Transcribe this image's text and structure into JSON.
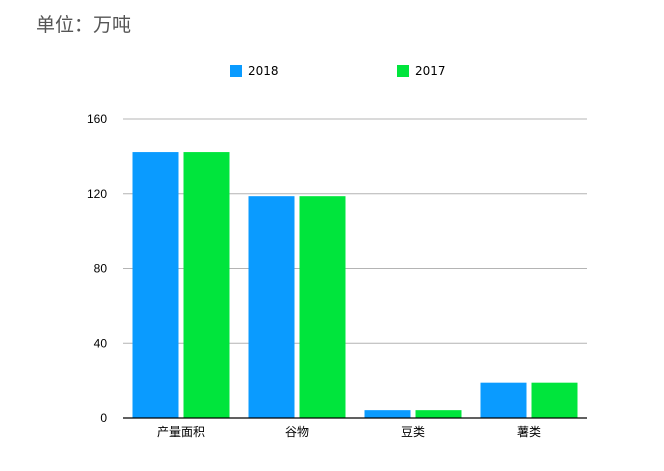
{
  "unit_text": "单位：万吨",
  "legend": [
    {
      "name": "2018",
      "color": "#0a9bff"
    },
    {
      "name": "2017",
      "color": "#00e53c"
    }
  ],
  "chart_data": {
    "type": "bar",
    "categories": [
      "产量面积",
      "谷物",
      "豆类",
      "薯类"
    ],
    "series": [
      {
        "name": "2018",
        "values": [
          142.3,
          118.7,
          4.2,
          18.9
        ],
        "color": "#0a9bff"
      },
      {
        "name": "2017",
        "values": [
          142.3,
          118.7,
          4.2,
          18.9
        ],
        "color": "#00e53c"
      }
    ],
    "yticks": [
      0,
      40,
      80,
      120,
      160
    ],
    "ylim": [
      0,
      160
    ],
    "grid": true,
    "legend_position": "top"
  }
}
